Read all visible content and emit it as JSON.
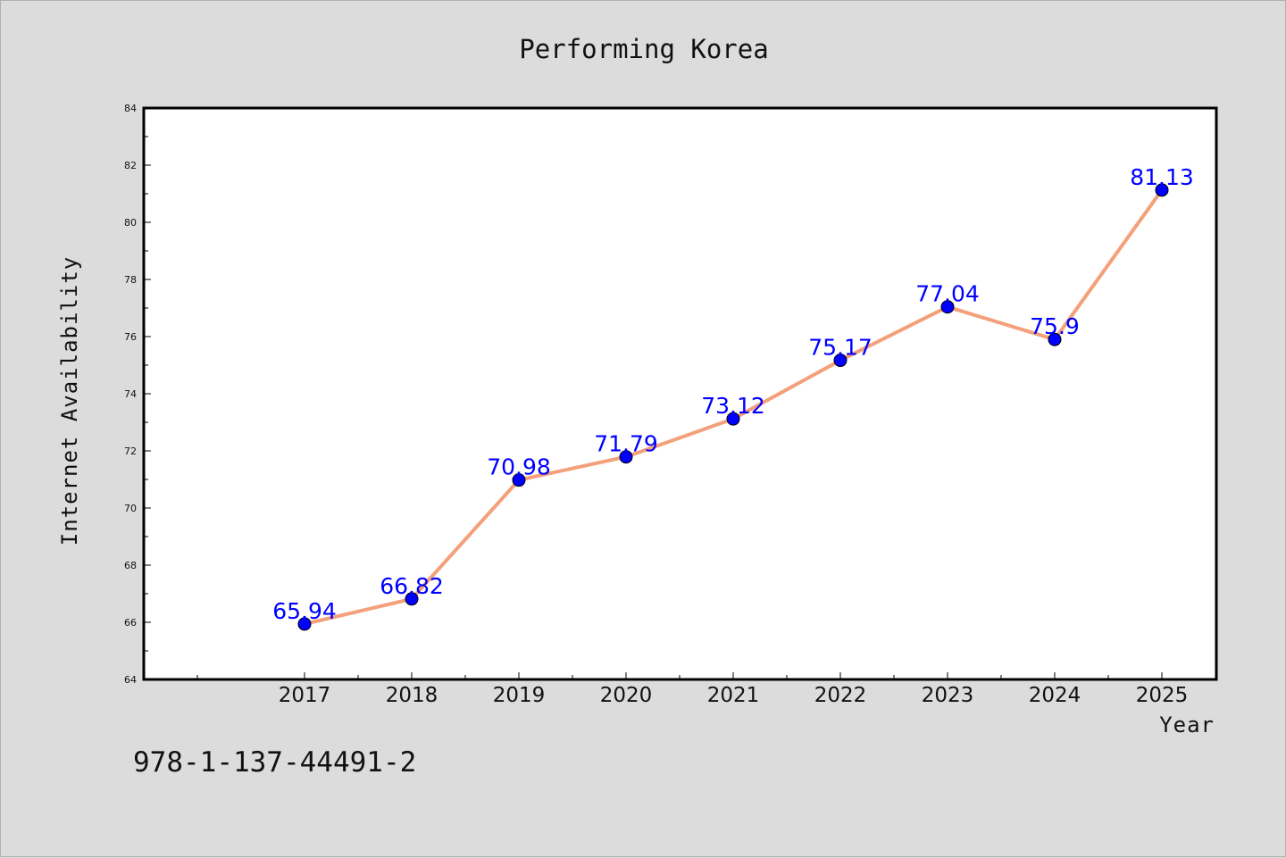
{
  "page": {
    "annotation": "978-1-137-44491-2"
  },
  "colors": {
    "background": "#dcdcdc",
    "plot_bg": "#ffffff",
    "line": "#f4a07a",
    "marker": "#0000ff",
    "data_label": "#0000ff"
  },
  "chart_data": {
    "type": "line",
    "title": "Performing Korea",
    "xlabel": "Year",
    "ylabel": "Internet Availability",
    "categories": [
      "2017",
      "2018",
      "2019",
      "2020",
      "2021",
      "2022",
      "2023",
      "2024",
      "2025"
    ],
    "series": [
      {
        "values": [
          65.94,
          66.82,
          70.98,
          71.79,
          73.12,
          75.17,
          77.04,
          75.9,
          81.13
        ]
      }
    ],
    "data_labels": [
      "65.94",
      "66.82",
      "70.98",
      "71.79",
      "73.12",
      "75.17",
      "77.04",
      "75.9",
      "81.13"
    ],
    "ylim": [
      64,
      84
    ],
    "yticks": [
      "64",
      "66",
      "68",
      "70",
      "72",
      "74",
      "76",
      "78",
      "80",
      "82",
      "84"
    ],
    "grid": false,
    "legend": "none"
  }
}
